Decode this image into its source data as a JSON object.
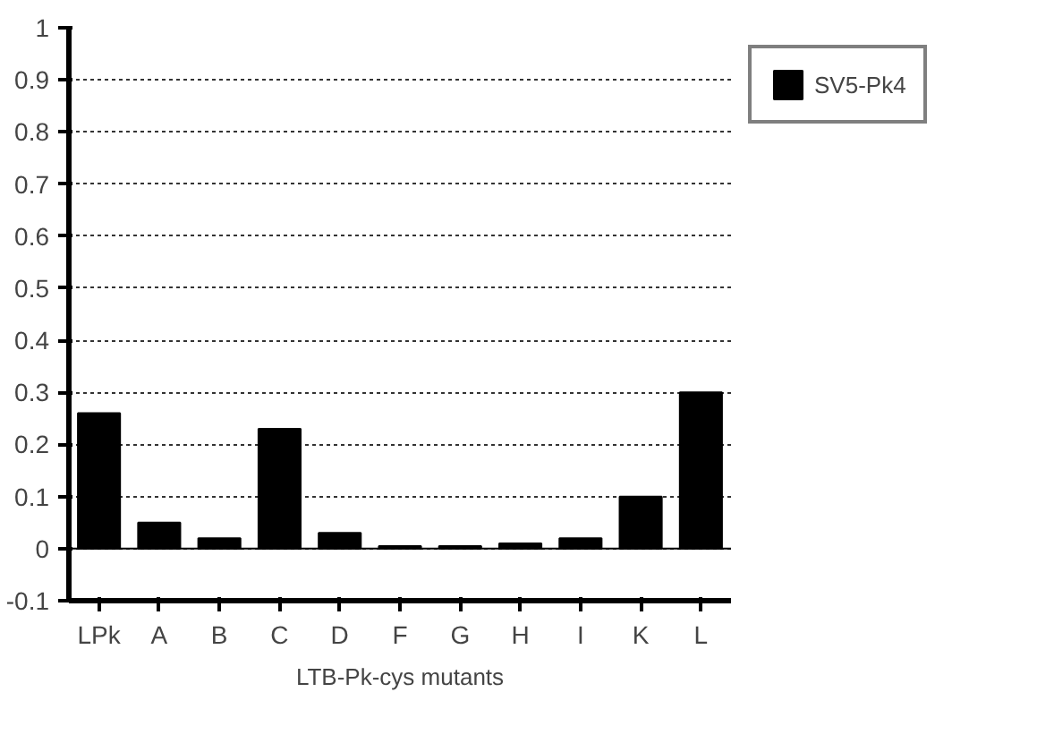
{
  "chart_data": {
    "type": "bar",
    "xlabel": "LTB-Pk-cys mutants",
    "categories": [
      "LPk",
      "A",
      "B",
      "C",
      "D",
      "F",
      "G",
      "H",
      "I",
      "K",
      "L"
    ],
    "series": [
      {
        "name": "SV5-Pk4",
        "color": "#000000",
        "values": [
          0.26,
          0.05,
          0.02,
          0.23,
          0.03,
          0.005,
          0.005,
          0.01,
          0.02,
          0.1,
          0.3
        ]
      }
    ],
    "ylim": [
      -0.1,
      1
    ],
    "yticks": [
      -0.1,
      0,
      0.1,
      0.2,
      0.3,
      0.4,
      0.5,
      0.6,
      0.7,
      0.8,
      0.9,
      1
    ],
    "grid": "y",
    "legend": "top right"
  }
}
